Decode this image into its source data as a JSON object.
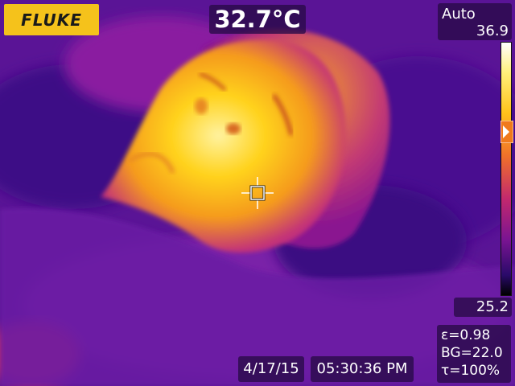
{
  "brand": {
    "logo_text": "FLUKE"
  },
  "readout": {
    "spot_temperature": "32.7°C"
  },
  "range": {
    "mode": "Auto",
    "max": "36.9",
    "min": "25.2"
  },
  "parameters": {
    "emissivity": "ε=0.98",
    "background": "BG=22.0",
    "transmission": "τ=100%"
  },
  "timestamp": {
    "date": "4/17/15",
    "time": "05:30:36 PM"
  },
  "icons": {
    "crosshair": "crosshair-icon",
    "scale_marker": "scale-marker-icon"
  },
  "colors": {
    "logo_bg": "#f5c21b",
    "palette_hot": "#ffffff",
    "palette_warm": "#ffd21a",
    "palette_mid": "#f0702a",
    "palette_cool": "#a01898",
    "palette_cold": "#3a0c7a",
    "palette_coldest": "#000000"
  }
}
